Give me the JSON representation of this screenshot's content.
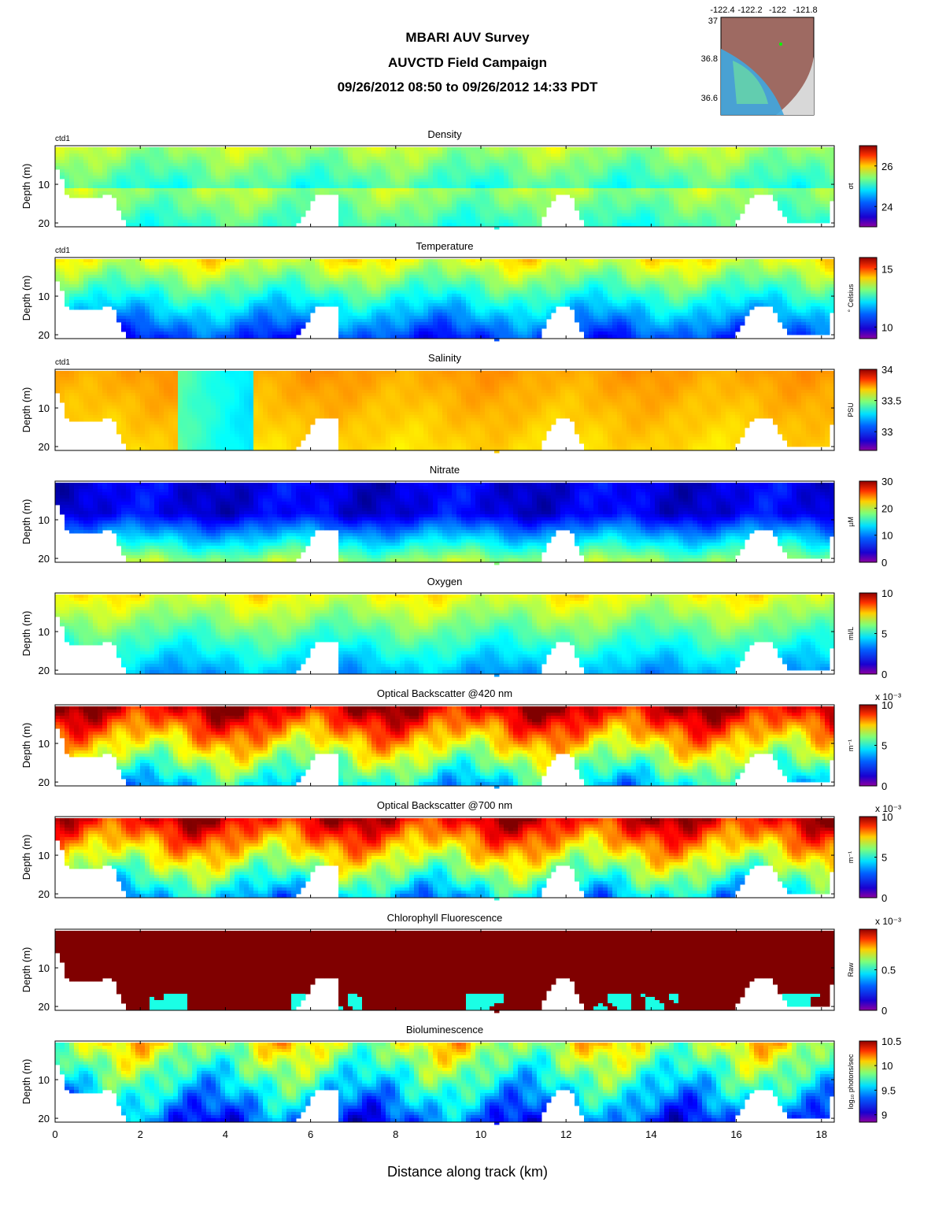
{
  "header": {
    "title": "MBARI AUV Survey",
    "subtitle": "AUVCTD Field Campaign",
    "time_range": "09/26/2012 08:50  to 09/26/2012 14:33 PDT"
  },
  "map": {
    "x_ticks": [
      "-122.4",
      "-122.2",
      "-122",
      "-121.8"
    ],
    "y_ticks": [
      "37",
      "36.8",
      "36.6"
    ]
  },
  "xlabel": "Distance along track (km)",
  "colors": {
    "jet_low": "#8c00a0",
    "jet_high": "#7f0000",
    "seafloor": "#ffffff"
  },
  "chart_data": [
    {
      "type": "heatmap",
      "title": "Density",
      "platform": "ctd1",
      "unit": "σt",
      "ylabel": "Depth (m)",
      "ylim": [
        0,
        21
      ],
      "y_ticks": [
        10,
        20
      ],
      "xlim": [
        0,
        18.3
      ],
      "x_ticks": [
        0,
        2,
        4,
        6,
        8,
        10,
        12,
        14,
        16,
        18
      ],
      "cbar_range": [
        23,
        27
      ],
      "cbar_ticks": [
        "24",
        "26"
      ],
      "cbar_exponent": ""
    },
    {
      "type": "heatmap",
      "title": "Temperature",
      "platform": "ctd1",
      "unit": "° Celsius",
      "ylabel": "Depth (m)",
      "ylim": [
        0,
        21
      ],
      "y_ticks": [
        10,
        20
      ],
      "xlim": [
        0,
        18.3
      ],
      "x_ticks": [
        0,
        2,
        4,
        6,
        8,
        10,
        12,
        14,
        16,
        18
      ],
      "cbar_range": [
        9,
        16
      ],
      "cbar_ticks": [
        "10",
        "15"
      ],
      "cbar_exponent": ""
    },
    {
      "type": "heatmap",
      "title": "Salinity",
      "platform": "ctd1",
      "unit": "PSU",
      "ylabel": "Depth (m)",
      "ylim": [
        0,
        21
      ],
      "y_ticks": [
        10,
        20
      ],
      "xlim": [
        0,
        18.3
      ],
      "x_ticks": [
        0,
        2,
        4,
        6,
        8,
        10,
        12,
        14,
        16,
        18
      ],
      "cbar_range": [
        32.7,
        34
      ],
      "cbar_ticks": [
        "33",
        "33.5",
        "34"
      ],
      "cbar_exponent": ""
    },
    {
      "type": "heatmap",
      "title": "Nitrate",
      "platform": "",
      "unit": "µM",
      "ylabel": "Depth (m)",
      "ylim": [
        0,
        21
      ],
      "y_ticks": [
        10,
        20
      ],
      "xlim": [
        0,
        18.3
      ],
      "x_ticks": [
        0,
        2,
        4,
        6,
        8,
        10,
        12,
        14,
        16,
        18
      ],
      "cbar_range": [
        0,
        30
      ],
      "cbar_ticks": [
        "0",
        "10",
        "20",
        "30"
      ],
      "cbar_exponent": ""
    },
    {
      "type": "heatmap",
      "title": "Oxygen",
      "platform": "",
      "unit": "ml/L",
      "ylabel": "Depth (m)",
      "ylim": [
        0,
        21
      ],
      "y_ticks": [
        10,
        20
      ],
      "xlim": [
        0,
        18.3
      ],
      "x_ticks": [
        0,
        2,
        4,
        6,
        8,
        10,
        12,
        14,
        16,
        18
      ],
      "cbar_range": [
        0,
        10
      ],
      "cbar_ticks": [
        "0",
        "5",
        "10"
      ],
      "cbar_exponent": ""
    },
    {
      "type": "heatmap",
      "title": "Optical Backscatter @420 nm",
      "platform": "",
      "unit": "m⁻¹",
      "ylabel": "Depth (m)",
      "ylim": [
        0,
        21
      ],
      "y_ticks": [
        10,
        20
      ],
      "xlim": [
        0,
        18.3
      ],
      "x_ticks": [
        0,
        2,
        4,
        6,
        8,
        10,
        12,
        14,
        16,
        18
      ],
      "cbar_range": [
        0,
        10
      ],
      "cbar_ticks": [
        "0",
        "5",
        "10"
      ],
      "cbar_exponent": "x 10⁻³"
    },
    {
      "type": "heatmap",
      "title": "Optical Backscatter @700 nm",
      "platform": "",
      "unit": "m⁻¹",
      "ylabel": "Depth (m)",
      "ylim": [
        0,
        21
      ],
      "y_ticks": [
        10,
        20
      ],
      "xlim": [
        0,
        18.3
      ],
      "x_ticks": [
        0,
        2,
        4,
        6,
        8,
        10,
        12,
        14,
        16,
        18
      ],
      "cbar_range": [
        0,
        10
      ],
      "cbar_ticks": [
        "0",
        "5",
        "10"
      ],
      "cbar_exponent": "x 10⁻³"
    },
    {
      "type": "heatmap",
      "title": "Chlorophyll Fluorescence",
      "platform": "",
      "unit": "Raw",
      "ylabel": "Depth (m)",
      "ylim": [
        0,
        21
      ],
      "y_ticks": [
        10,
        20
      ],
      "xlim": [
        0,
        18.3
      ],
      "x_ticks": [
        0,
        2,
        4,
        6,
        8,
        10,
        12,
        14,
        16,
        18
      ],
      "cbar_range": [
        0,
        1
      ],
      "cbar_ticks": [
        "0",
        "0.5"
      ],
      "cbar_exponent": "x 10⁻³"
    },
    {
      "type": "heatmap",
      "title": "Bioluminescence",
      "platform": "",
      "unit": "log₁₀ photons/sec",
      "ylabel": "Depth (m)",
      "ylim": [
        0,
        21
      ],
      "y_ticks": [
        10,
        20
      ],
      "xlim": [
        0,
        18.3
      ],
      "x_ticks": [
        0,
        2,
        4,
        6,
        8,
        10,
        12,
        14,
        16,
        18
      ],
      "cbar_range": [
        8.85,
        10.5
      ],
      "cbar_ticks": [
        "9",
        "9.5",
        "10",
        "10.5"
      ],
      "cbar_exponent": ""
    }
  ],
  "seafloor_profile_km_m": [
    [
      0,
      6
    ],
    [
      0.15,
      9
    ],
    [
      0.25,
      13
    ],
    [
      1.3,
      12.5
    ],
    [
      1.6,
      20
    ],
    [
      5.6,
      20
    ],
    [
      5.75,
      18.5
    ],
    [
      6.05,
      12.5
    ],
    [
      6.55,
      12
    ],
    [
      6.65,
      20
    ],
    [
      10.1,
      20.5
    ],
    [
      10.3,
      21
    ],
    [
      10.5,
      20.5
    ],
    [
      11.35,
      20
    ],
    [
      11.6,
      14
    ],
    [
      11.8,
      12.2
    ],
    [
      12.05,
      12.3
    ],
    [
      12.35,
      20
    ],
    [
      15.9,
      20
    ],
    [
      16.35,
      12.3
    ],
    [
      16.75,
      12.3
    ],
    [
      17.15,
      19.5
    ],
    [
      18.1,
      19.5
    ],
    [
      18.3,
      6
    ]
  ]
}
